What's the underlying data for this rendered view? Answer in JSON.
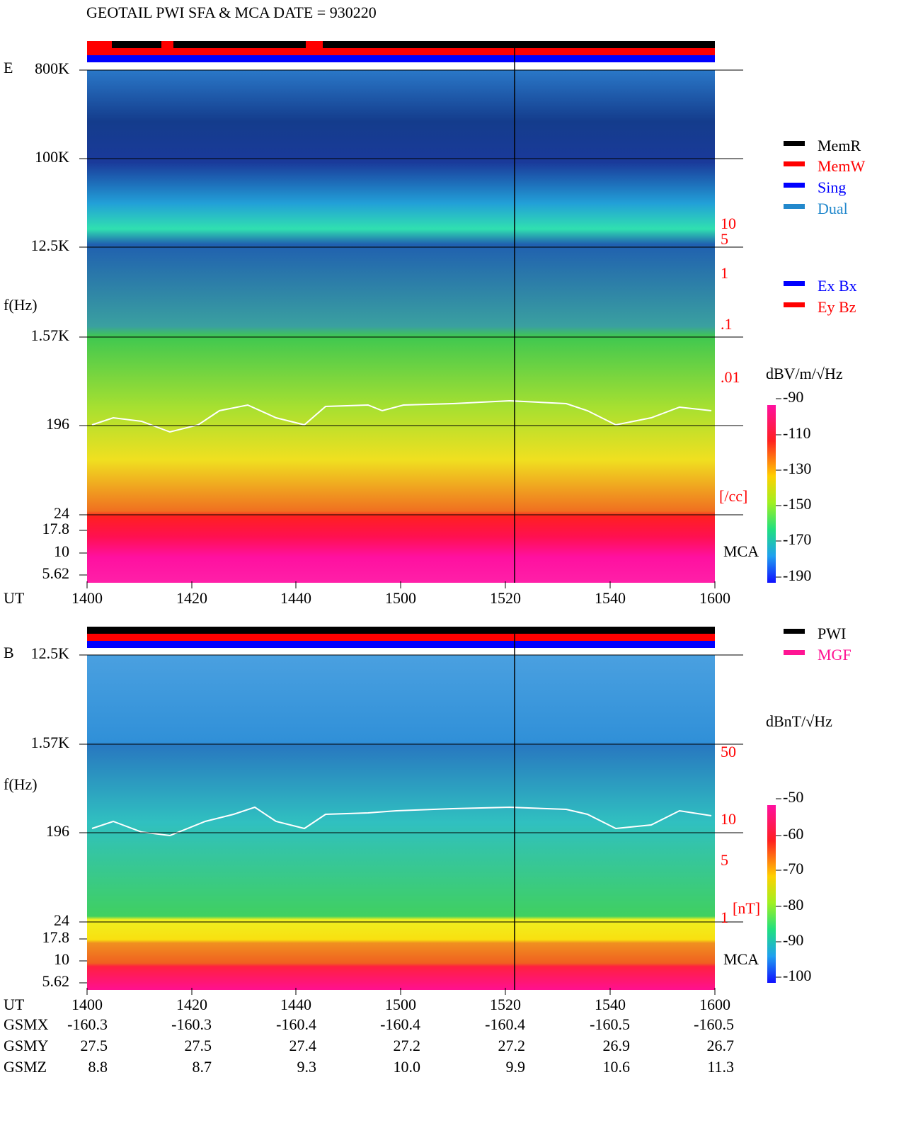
{
  "title": "GEOTAIL   PWI SFA & MCA   DATE = 930220",
  "panels": [
    {
      "label": "E",
      "y_axis_label": "f(Hz)",
      "freq_ticks": [
        "800K",
        "100K",
        "12.5K",
        "1.57K",
        "196",
        "24",
        "17.8",
        "10",
        "5.62"
      ],
      "scale_ticks": [
        "10",
        "5",
        "1",
        ".1",
        ".01"
      ],
      "scale_unit": "[/cc]",
      "mca_label": "MCA",
      "time_label": "UT",
      "time_ticks": [
        "1400",
        "1420",
        "1440",
        "1500",
        "1520",
        "1540",
        "1600"
      ],
      "colorbar": {
        "unit": "dBV/m/√Hz",
        "ticks": [
          "-90",
          "-110",
          "-130",
          "-150",
          "-170",
          "-190"
        ]
      },
      "legend": [
        {
          "name": "MemR",
          "color": "#000000"
        },
        {
          "name": "MemW",
          "color": "#ff0000"
        },
        {
          "name": "Sing",
          "color": "#0000ff"
        },
        {
          "name": "Dual",
          "color": "#2288cc"
        },
        {
          "name": "Ex Bx",
          "color": "#0000ff"
        },
        {
          "name": "Ey Bz",
          "color": "#ff0000"
        }
      ]
    },
    {
      "label": "B",
      "y_axis_label": "f(Hz)",
      "freq_ticks": [
        "12.5K",
        "1.57K",
        "196",
        "24",
        "17.8",
        "10",
        "5.62"
      ],
      "scale_ticks": [
        "50",
        "10",
        "5",
        "1"
      ],
      "scale_unit": "[nT]",
      "mca_label": "MCA",
      "time_label": "UT",
      "time_ticks": [
        "1400",
        "1420",
        "1440",
        "1500",
        "1520",
        "1540",
        "1600"
      ],
      "colorbar": {
        "unit": "dBnT/√Hz",
        "ticks": [
          "-50",
          "-60",
          "-70",
          "-80",
          "-90",
          "-100"
        ]
      },
      "legend": [
        {
          "name": "PWI",
          "color": "#000000"
        },
        {
          "name": "MGF",
          "color": "#ff1493"
        }
      ]
    }
  ],
  "orbit": [
    {
      "label": "GSMX",
      "values": [
        "-160.3",
        "-160.3",
        "-160.4",
        "-160.4",
        "-160.4",
        "-160.5",
        "-160.5"
      ]
    },
    {
      "label": "GSMY",
      "values": [
        "27.5",
        "27.5",
        "27.4",
        "27.2",
        "27.2",
        "26.9",
        "26.7"
      ]
    },
    {
      "label": "GSMZ",
      "values": [
        "8.8",
        "8.7",
        "9.3",
        "10.0",
        "9.9",
        "10.6",
        "11.3"
      ]
    }
  ]
}
